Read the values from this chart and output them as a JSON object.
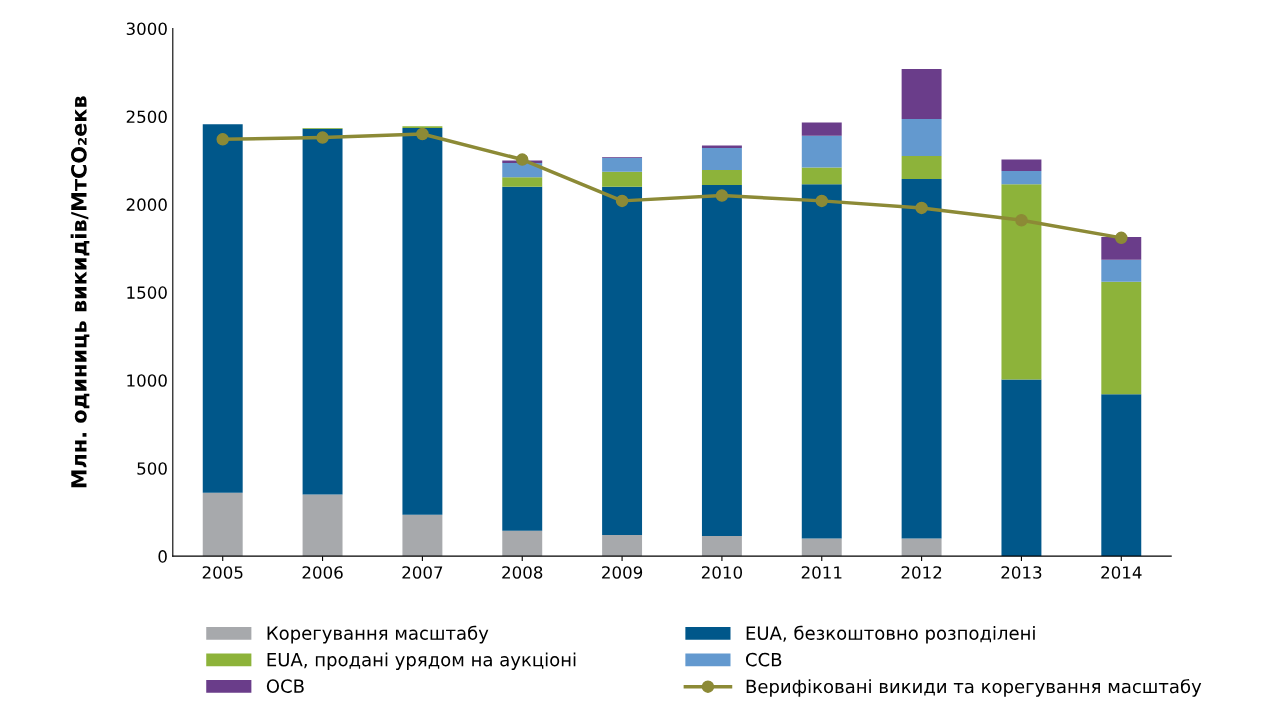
{
  "chart_data": {
    "type": "bar",
    "stacked": true,
    "ylabel": "Млн. одиниць викидів/МтCO₂екв",
    "categories": [
      "2005",
      "2006",
      "2007",
      "2008",
      "2009",
      "2010",
      "2011",
      "2012",
      "2013",
      "2014"
    ],
    "series": [
      {
        "name": "Корегування масштабу",
        "color": "#a7a9ac",
        "values": [
          360,
          350,
          235,
          145,
          120,
          115,
          100,
          100,
          0,
          0
        ]
      },
      {
        "name": "EUA, безкоштовно розподілені",
        "color": "#00578a",
        "values": [
          2095,
          2080,
          2200,
          1955,
          1980,
          1995,
          2015,
          2045,
          1005,
          920
        ]
      },
      {
        "name": "EUA, продані урядом на аукціоні",
        "color": "#8db33a",
        "values": [
          0,
          5,
          10,
          55,
          85,
          85,
          95,
          130,
          1110,
          640
        ]
      },
      {
        "name": "ССВ",
        "color": "#6399cf",
        "values": [
          0,
          0,
          0,
          80,
          80,
          125,
          180,
          210,
          75,
          125
        ]
      },
      {
        "name": "ОСВ",
        "color": "#6a3d8a",
        "values": [
          0,
          0,
          0,
          15,
          5,
          15,
          75,
          285,
          65,
          130
        ]
      },
      {
        "name": "Верифіковані викиди та корегування масштабу",
        "type": "line",
        "color": "#8c8a36",
        "marker": "circle",
        "values": [
          2370,
          2380,
          2400,
          2255,
          2020,
          2050,
          2020,
          1980,
          1910,
          1810
        ]
      }
    ],
    "ylim": [
      0,
      3000
    ],
    "yticks": [
      0,
      500,
      1000,
      1500,
      2000,
      2500,
      3000
    ],
    "grid": false,
    "legend": "bottom"
  }
}
